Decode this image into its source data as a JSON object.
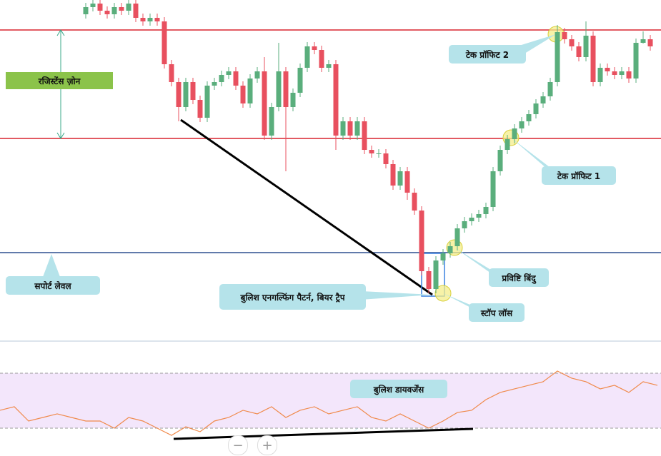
{
  "chart_data": {
    "type": "candlestick",
    "open": [
      460,
      470,
      475,
      465,
      460,
      470,
      465,
      475,
      455,
      450,
      455,
      450,
      390,
      365,
      330,
      365,
      340,
      315,
      360,
      365,
      375,
      380,
      360,
      335,
      370,
      380,
      290,
      330,
      380,
      330,
      350,
      385,
      415,
      410,
      385,
      390,
      290,
      310,
      290,
      310,
      270,
      265,
      265,
      250,
      220,
      240,
      210,
      185,
      100,
      75,
      115,
      125,
      135,
      160,
      170,
      175,
      180,
      190,
      240,
      270,
      285,
      300,
      310,
      320,
      335,
      345,
      365,
      435,
      425,
      415,
      400,
      430,
      365,
      385,
      380,
      375,
      380,
      370,
      420,
      425
    ],
    "high": [
      476,
      481,
      481,
      471,
      476,
      476,
      481,
      481,
      461,
      461,
      461,
      456,
      396,
      371,
      371,
      371,
      346,
      366,
      371,
      381,
      386,
      386,
      366,
      376,
      386,
      400,
      336,
      420,
      386,
      356,
      391,
      421,
      421,
      416,
      396,
      396,
      316,
      316,
      316,
      316,
      276,
      271,
      271,
      256,
      246,
      246,
      216,
      191,
      106,
      121,
      131,
      141,
      166,
      176,
      181,
      186,
      196,
      246,
      276,
      291,
      306,
      316,
      326,
      341,
      351,
      371,
      445,
      441,
      431,
      421,
      450,
      436,
      391,
      391,
      386,
      386,
      386,
      426,
      436,
      431
    ],
    "low": [
      454,
      464,
      459,
      454,
      454,
      459,
      459,
      449,
      444,
      444,
      444,
      384,
      359,
      310,
      324,
      334,
      309,
      309,
      354,
      359,
      369,
      354,
      329,
      329,
      364,
      284,
      284,
      324,
      240,
      324,
      344,
      379,
      404,
      379,
      379,
      270,
      284,
      284,
      284,
      264,
      259,
      259,
      244,
      214,
      214,
      200,
      179,
      94,
      69,
      69,
      109,
      119,
      129,
      154,
      164,
      169,
      174,
      184,
      234,
      264,
      279,
      294,
      304,
      314,
      329,
      339,
      359,
      419,
      409,
      394,
      394,
      359,
      359,
      374,
      369,
      369,
      364,
      364,
      419,
      409
    ],
    "close": [
      470,
      475,
      465,
      460,
      470,
      465,
      475,
      455,
      450,
      455,
      450,
      390,
      365,
      330,
      365,
      340,
      315,
      360,
      365,
      375,
      380,
      360,
      335,
      370,
      380,
      290,
      330,
      380,
      330,
      350,
      385,
      415,
      410,
      385,
      390,
      290,
      310,
      290,
      310,
      270,
      265,
      265,
      250,
      220,
      240,
      210,
      185,
      100,
      75,
      115,
      125,
      135,
      160,
      170,
      175,
      180,
      190,
      240,
      270,
      285,
      300,
      310,
      320,
      335,
      345,
      365,
      435,
      425,
      415,
      400,
      430,
      365,
      385,
      380,
      375,
      380,
      370,
      420,
      425,
      415
    ],
    "ylim": [
      0,
      480
    ],
    "up_color": "#5aae7c",
    "down_color": "#e8505f",
    "levels": [
      {
        "value": 438,
        "color": "#d9232f"
      },
      {
        "value": 286,
        "color": "#d9232f"
      },
      {
        "value": 126,
        "color": "#2d4f8f"
      }
    ],
    "annotations": [
      "रजिस्टेंस ज़ोन",
      "सपोर्ट लेवल",
      "बुलिश एनगल्फिंग पैटर्न, बियर ट्रैप",
      "स्टॉप लॉस",
      "प्रविष्टि बिंदु",
      "टेक प्रॉफिट 1",
      "टेक प्रॉफिट 2",
      "बुलिश डायवर्जेंस"
    ]
  },
  "indicator": {
    "type": "line",
    "color": "#f08a4b",
    "values": [
      43,
      45.6,
      35.2,
      37.8,
      40.4,
      37.8,
      35.2,
      35.2,
      30,
      37.8,
      35.2,
      30,
      24.8,
      31,
      27.4,
      35.2,
      37.8,
      43,
      40.4,
      45.6,
      37.8,
      43,
      45.6,
      40.4,
      43,
      45.6,
      37.8,
      35.2,
      40.4,
      35.2,
      30,
      35.2,
      41.4,
      43,
      50.8,
      56,
      58.6,
      61.2,
      63.8,
      71.6,
      66.4,
      63.8,
      58.6,
      61.2,
      56,
      63.8,
      61.2
    ],
    "band": [
      30,
      70
    ],
    "ylim": [
      20,
      80
    ]
  },
  "controls": [
    "−",
    "+"
  ]
}
